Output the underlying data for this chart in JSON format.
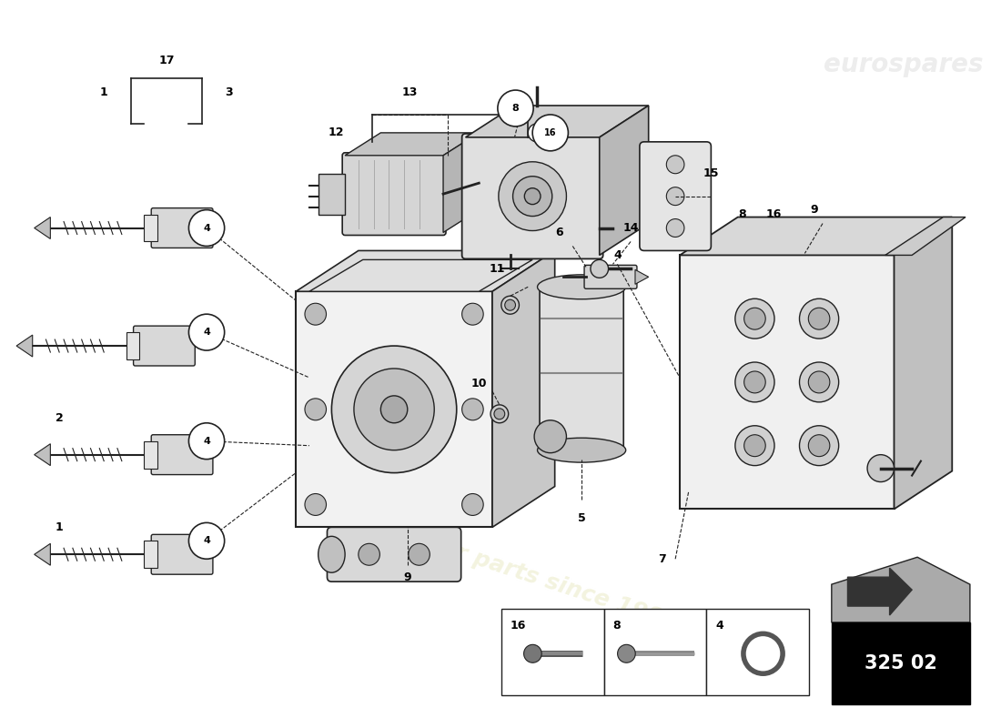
{
  "background_color": "#ffffff",
  "part_number": "325 02",
  "line_color": "#222222",
  "fill_light": "#e8e8e8",
  "fill_mid": "#d0d0d0",
  "fill_dark": "#aaaaaa"
}
